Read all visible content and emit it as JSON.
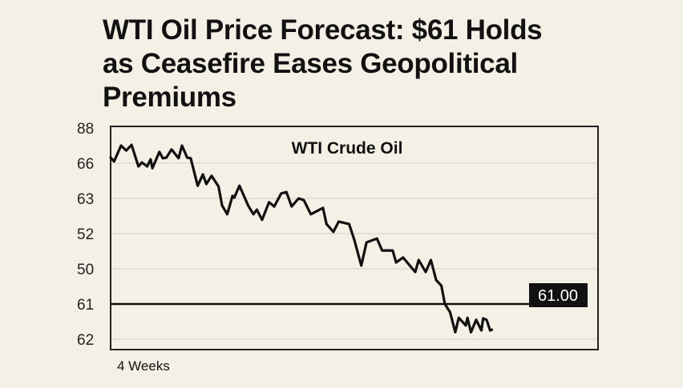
{
  "headline": {
    "lines": [
      "WTI Oil Price Forecast: $61 Holds",
      "as Ceasefire Eases Geopolitical",
      "Premiums"
    ]
  },
  "chart_data": {
    "type": "line",
    "title": "WTI Crude Oil",
    "xlabel": "4 Weeks",
    "ylabel": "",
    "x_unit": "days",
    "xlim": [
      0,
      28
    ],
    "y_note": "y values are given as positions on the tick-label ladder (0 = first tick, 6 = last tick); the tick labels printed on the chart are not monotonic",
    "y_ticks": [
      {
        "level": 0,
        "label": "88"
      },
      {
        "level": 1,
        "label": "66"
      },
      {
        "level": 2,
        "label": "63"
      },
      {
        "level": 3,
        "label": "52"
      },
      {
        "level": 4,
        "label": "50"
      },
      {
        "level": 5,
        "label": "61"
      },
      {
        "level": 6,
        "label": "62"
      }
    ],
    "ylim": [
      0,
      6
    ],
    "grid": true,
    "reference_line": {
      "level": 5,
      "label": "61.00"
    },
    "series": [
      {
        "name": "WTI Crude Oil",
        "color": "#111111",
        "x": [
          0,
          0.2,
          0.6,
          0.9,
          1.2,
          1.6,
          1.8,
          2.1,
          2.3,
          2.4,
          2.8,
          3.0,
          3.2,
          3.5,
          3.9,
          4.1,
          4.4,
          4.6,
          5.0,
          5.3,
          5.5,
          5.8,
          6.2,
          6.4,
          6.7,
          7.0,
          7.1,
          7.4,
          7.9,
          8.2,
          8.4,
          8.7,
          9.1,
          9.4,
          9.8,
          10.1,
          10.4,
          10.8,
          11.1,
          11.5,
          12.2,
          12.4,
          12.8,
          13.1,
          13.7,
          14.0,
          14.4,
          14.7,
          15.3,
          15.6,
          16.2,
          16.4,
          16.8,
          17.5,
          17.7,
          18.1,
          18.4,
          18.7,
          19.0,
          19.2,
          19.5,
          19.8,
          20.0,
          20.4,
          20.5,
          20.7,
          21.0,
          21.3,
          21.4,
          21.6,
          21.8,
          21.9
        ],
        "y": [
          0.84,
          0.95,
          0.5,
          0.64,
          0.48,
          1.09,
          0.98,
          1.09,
          0.89,
          1.14,
          0.68,
          0.86,
          0.84,
          0.61,
          0.86,
          0.5,
          0.84,
          0.86,
          1.64,
          1.32,
          1.59,
          1.36,
          1.66,
          2.2,
          2.45,
          1.93,
          1.98,
          1.64,
          2.2,
          2.45,
          2.32,
          2.61,
          2.11,
          2.23,
          1.86,
          1.82,
          2.23,
          2.0,
          2.05,
          2.45,
          2.27,
          2.73,
          2.95,
          2.66,
          2.73,
          3.18,
          3.91,
          3.25,
          3.14,
          3.48,
          3.48,
          3.82,
          3.68,
          4.09,
          3.75,
          4.09,
          3.75,
          4.32,
          4.48,
          5.0,
          5.23,
          5.8,
          5.39,
          5.61,
          5.39,
          5.8,
          5.45,
          5.75,
          5.41,
          5.45,
          5.75,
          5.73
        ]
      }
    ]
  }
}
